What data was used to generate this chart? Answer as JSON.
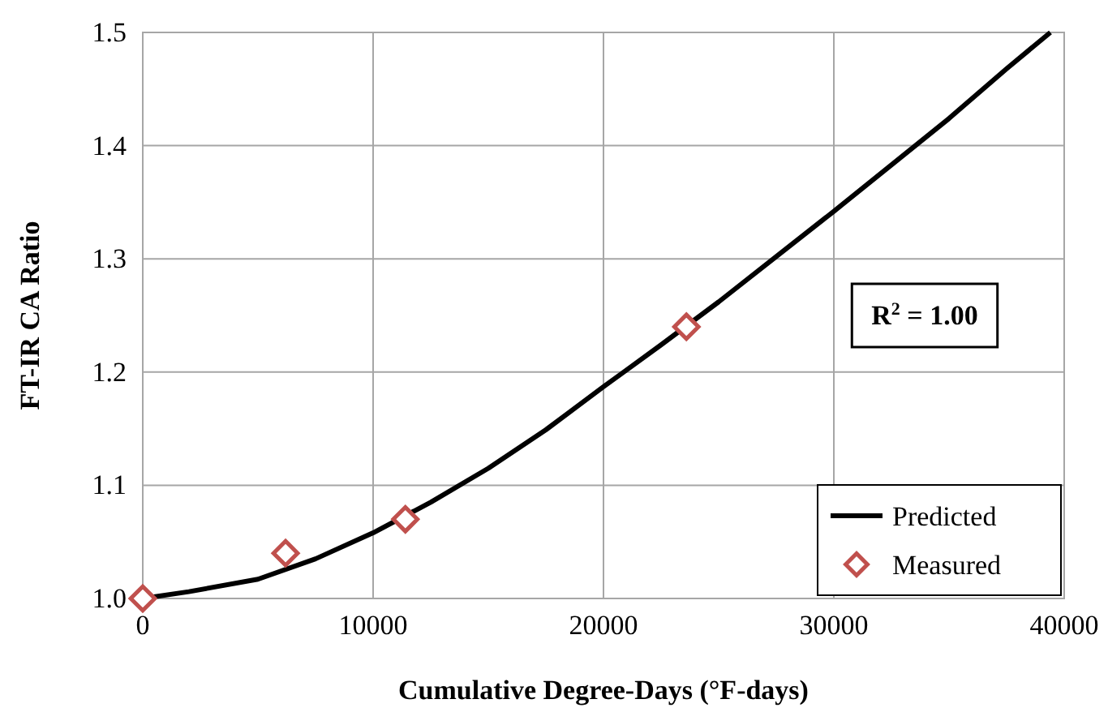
{
  "chart_data": {
    "type": "line",
    "xlabel": "Cumulative Degree-Days (°F-days)",
    "ylabel": "FT-IR CA Ratio",
    "xlim": [
      0,
      40000
    ],
    "xticks": [
      0,
      10000,
      20000,
      30000,
      40000
    ],
    "ylim": [
      1.0,
      1.5
    ],
    "yticks": [
      {
        "value": 1.0,
        "label": "1.0"
      },
      1.1,
      1.2,
      1.3,
      1.4,
      1.5
    ],
    "grid": true,
    "legend": "bottom right",
    "annotations": [
      "R$^{2}$ = 1.00"
    ],
    "series": [
      {
        "name": "Predicted",
        "color": "#000000",
        "marker": "none",
        "line_style": "solid",
        "x": [
          0,
          2000,
          5000,
          7500,
          10000,
          12500,
          15000,
          17500,
          20000,
          22500,
          25000,
          27500,
          30000,
          32500,
          35000,
          37500,
          39400
        ],
        "values": [
          1.0,
          1.006,
          1.017,
          1.035,
          1.058,
          1.085,
          1.115,
          1.149,
          1.187,
          1.224,
          1.262,
          1.302,
          1.342,
          1.383,
          1.424,
          1.468,
          1.5
        ]
      },
      {
        "name": "Measured",
        "type": "scatter",
        "color": "#c0504d",
        "marker": "diamond",
        "x": [
          0,
          6200,
          11400,
          23600
        ],
        "values": [
          1.0,
          1.04,
          1.07,
          1.24
        ]
      }
    ]
  }
}
